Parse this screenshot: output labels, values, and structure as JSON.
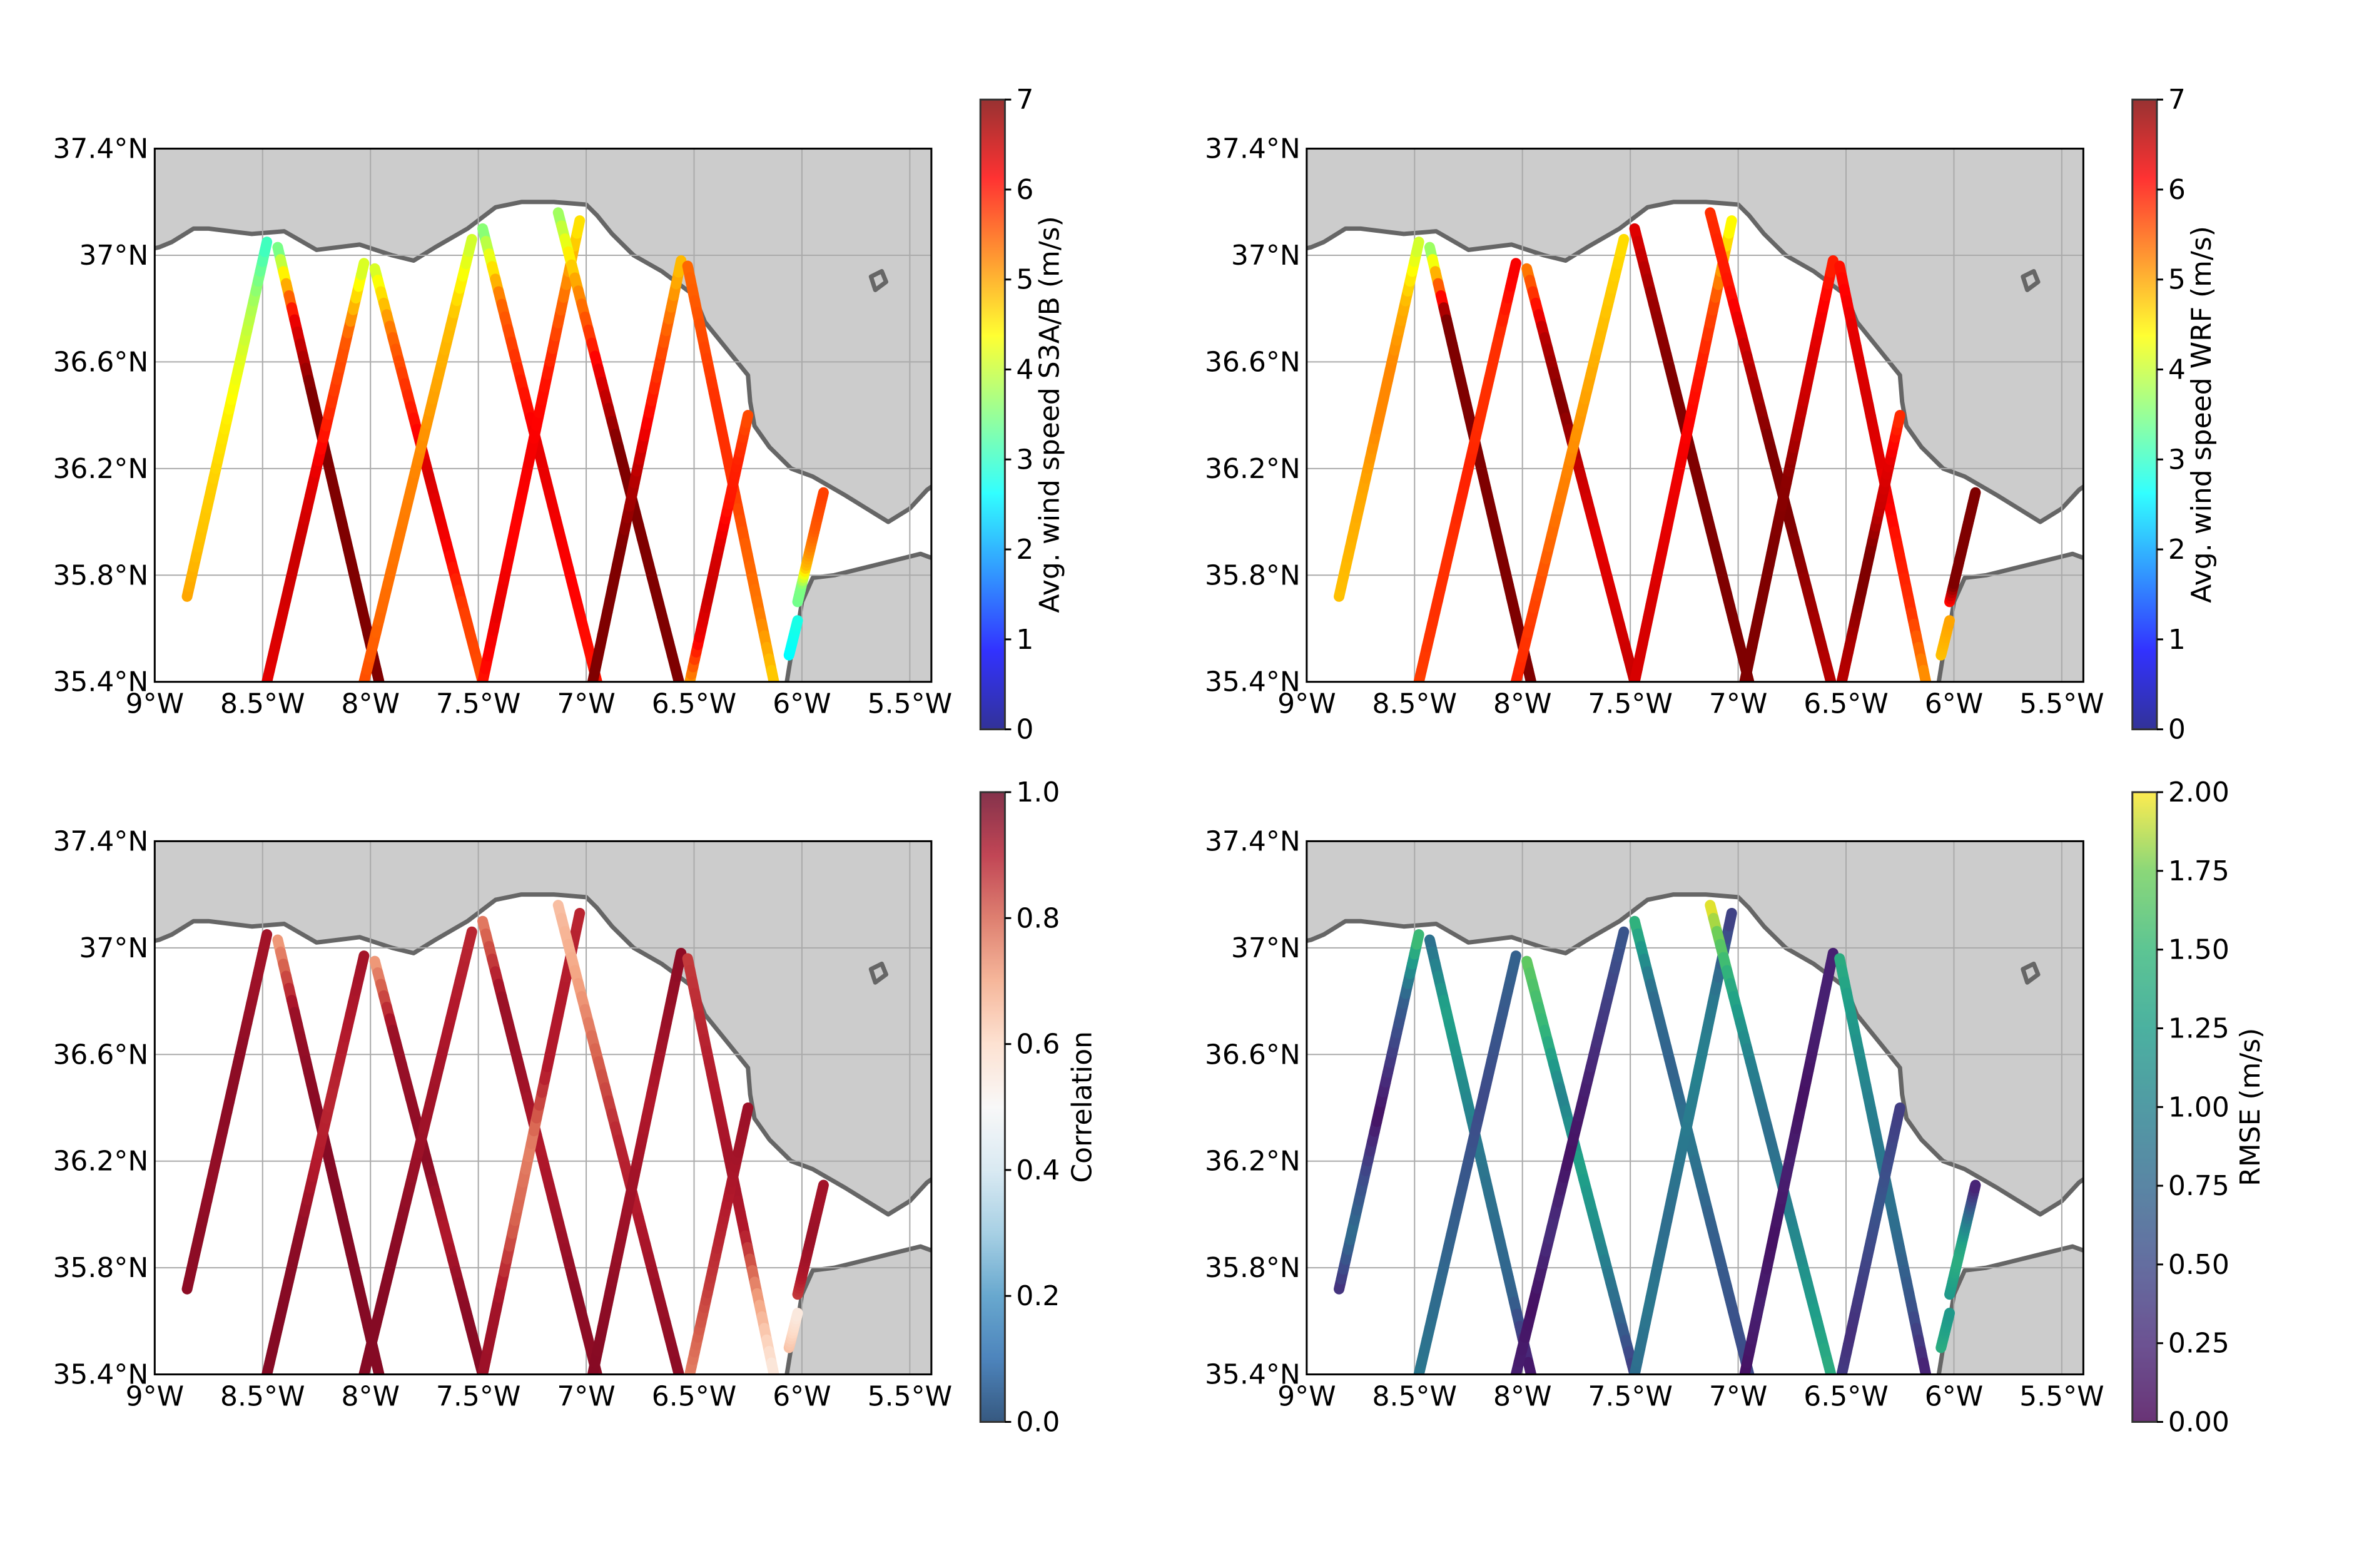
{
  "figure": {
    "panels": [
      {
        "id": "s3ab",
        "colorbar_label": "Avg. wind speed S3A/B (m/s)",
        "colormap": "jet",
        "vmin": 0,
        "vmax": 7,
        "colorbar_ticks": [
          "0",
          "1",
          "2",
          "3",
          "4",
          "5",
          "6",
          "7"
        ]
      },
      {
        "id": "wrf",
        "colorbar_label": "Avg. wind speed WRF (m/s)",
        "colormap": "jet",
        "vmin": 0,
        "vmax": 7,
        "colorbar_ticks": [
          "0",
          "1",
          "2",
          "3",
          "4",
          "5",
          "6",
          "7"
        ]
      },
      {
        "id": "correlation",
        "colorbar_label": "Correlation",
        "colormap": "RdBu_r",
        "vmin": 0,
        "vmax": 1,
        "colorbar_ticks": [
          "0.0",
          "0.2",
          "0.4",
          "0.6",
          "0.8",
          "1.0"
        ]
      },
      {
        "id": "rmse",
        "colorbar_label": "RMSE (m/s)",
        "colormap": "viridis",
        "vmin": 0,
        "vmax": 2,
        "colorbar_ticks": [
          "0.00",
          "0.25",
          "0.50",
          "0.75",
          "1.00",
          "1.25",
          "1.50",
          "1.75",
          "2.00"
        ]
      }
    ],
    "x_ticks": [
      "9°W",
      "8.5°W",
      "8°W",
      "7.5°W",
      "7°W",
      "6.5°W",
      "6°W",
      "5.5°W"
    ],
    "y_ticks": [
      "35.4°N",
      "35.8°N",
      "36.2°N",
      "36.6°N",
      "37°N",
      "37.4°N"
    ],
    "colors": {
      "land": "#cccccc",
      "coast": "#666666",
      "grid": "#aaaaaa"
    }
  },
  "chart_data": [
    {
      "type": "map-tracks",
      "panel": "s3ab",
      "lon_range": [
        -9,
        -5.4
      ],
      "lat_range": [
        35.4,
        37.4
      ],
      "grid": true,
      "tracks": [
        {
          "start": [
            -8.85,
            35.72
          ],
          "end": [
            -8.48,
            37.05
          ],
          "values": [
            5.0,
            4.8,
            4.7,
            4.5,
            4.2,
            3.8,
            3.0
          ]
        },
        {
          "start": [
            -8.43,
            37.03
          ],
          "end": [
            -7.96,
            35.4
          ],
          "values": [
            3.2,
            6.2,
            7.0,
            7.0,
            7.0,
            7.0,
            7.0
          ]
        },
        {
          "start": [
            -8.48,
            35.4
          ],
          "end": [
            -8.03,
            36.97
          ],
          "values": [
            6.3,
            6.4,
            6.5,
            6.3,
            5.8,
            5.5,
            4.0
          ]
        },
        {
          "start": [
            -7.98,
            36.95
          ],
          "end": [
            -7.48,
            35.4
          ],
          "values": [
            4.0,
            5.4,
            5.9,
            6.4,
            6.2,
            5.7,
            5.6
          ]
        },
        {
          "start": [
            -8.03,
            35.4
          ],
          "end": [
            -7.53,
            37.06
          ],
          "values": [
            5.6,
            5.4,
            5.3,
            5.2,
            5.0,
            4.8,
            4.0
          ]
        },
        {
          "start": [
            -7.48,
            37.1
          ],
          "end": [
            -6.95,
            35.4
          ],
          "values": [
            3.4,
            5.4,
            5.9,
            6.3,
            6.2,
            6.1,
            6.0
          ]
        },
        {
          "start": [
            -7.48,
            35.4
          ],
          "end": [
            -7.03,
            37.13
          ],
          "values": [
            6.0,
            6.3,
            6.1,
            6.2,
            6.0,
            5.4,
            4.5
          ]
        },
        {
          "start": [
            -7.13,
            37.16
          ],
          "end": [
            -6.57,
            35.4
          ],
          "values": [
            3.6,
            5.1,
            6.2,
            7.0,
            7.0,
            7.0,
            7.0
          ]
        },
        {
          "start": [
            -6.97,
            35.4
          ],
          "end": [
            -6.56,
            36.98
          ],
          "values": [
            7.0,
            7.0,
            7.0,
            6.6,
            6.0,
            5.5,
            4.8
          ]
        },
        {
          "start": [
            -6.53,
            36.96
          ],
          "end": [
            -6.13,
            35.4
          ],
          "values": [
            5.4,
            5.6,
            5.8,
            5.8,
            5.5,
            5.3,
            4.7
          ]
        },
        {
          "start": [
            -6.52,
            35.4
          ],
          "end": [
            -6.25,
            36.4
          ],
          "values": [
            5.0,
            6.2,
            6.5,
            6.4,
            6.0,
            5.9,
            5.6
          ]
        },
        {
          "start": [
            -6.02,
            35.7
          ],
          "end": [
            -5.9,
            36.11
          ],
          "values": [
            3.4,
            3.5,
            4.8,
            5.2,
            5.5,
            5.6,
            5.7
          ]
        },
        {
          "start": [
            -6.06,
            35.5
          ],
          "end": [
            -6.02,
            35.63
          ],
          "values": [
            2.6,
            2.7,
            2.8
          ]
        }
      ]
    },
    {
      "type": "map-tracks",
      "panel": "wrf",
      "lon_range": [
        -9,
        -5.4
      ],
      "lat_range": [
        35.4,
        37.4
      ],
      "grid": true,
      "tracks": [
        {
          "start": [
            -8.85,
            35.72
          ],
          "end": [
            -8.48,
            37.05
          ],
          "values": [
            4.8,
            4.9,
            5.0,
            5.2,
            5.2,
            4.9,
            4.0
          ]
        },
        {
          "start": [
            -8.43,
            37.03
          ],
          "end": [
            -7.96,
            35.4
          ],
          "values": [
            3.4,
            7.0,
            7.0,
            7.0,
            7.0,
            7.0,
            7.0
          ]
        },
        {
          "start": [
            -8.48,
            35.4
          ],
          "end": [
            -8.03,
            36.97
          ],
          "values": [
            5.7,
            5.8,
            5.8,
            5.9,
            5.8,
            5.8,
            6.2
          ]
        },
        {
          "start": [
            -7.98,
            36.95
          ],
          "end": [
            -7.48,
            35.4
          ],
          "values": [
            5.2,
            6.6,
            7.0,
            6.5,
            6.3,
            6.4,
            6.5
          ]
        },
        {
          "start": [
            -8.03,
            35.4
          ],
          "end": [
            -7.53,
            37.06
          ],
          "values": [
            5.9,
            5.7,
            5.4,
            5.2,
            5.0,
            4.8,
            4.6
          ]
        },
        {
          "start": [
            -7.48,
            37.1
          ],
          "end": [
            -6.95,
            35.4
          ],
          "values": [
            6.3,
            6.8,
            7.0,
            7.0,
            7.0,
            7.0,
            7.0
          ]
        },
        {
          "start": [
            -7.48,
            35.4
          ],
          "end": [
            -7.03,
            37.13
          ],
          "values": [
            6.4,
            6.4,
            6.3,
            6.2,
            6.0,
            5.6,
            4.3
          ]
        },
        {
          "start": [
            -7.13,
            37.16
          ],
          "end": [
            -6.57,
            35.4
          ],
          "values": [
            5.8,
            6.0,
            6.6,
            7.0,
            7.0,
            6.8,
            6.6
          ]
        },
        {
          "start": [
            -6.97,
            35.4
          ],
          "end": [
            -6.56,
            36.98
          ],
          "values": [
            7.0,
            7.0,
            7.0,
            6.9,
            6.5,
            6.3,
            5.9
          ]
        },
        {
          "start": [
            -6.53,
            36.96
          ],
          "end": [
            -6.13,
            35.4
          ],
          "values": [
            6.0,
            6.3,
            6.4,
            6.3,
            6.0,
            5.8,
            5.1
          ]
        },
        {
          "start": [
            -6.52,
            35.4
          ],
          "end": [
            -6.25,
            36.4
          ],
          "values": [
            6.6,
            6.7,
            7.0,
            7.0,
            6.5,
            6.3,
            5.8
          ]
        },
        {
          "start": [
            -6.02,
            35.7
          ],
          "end": [
            -5.9,
            36.11
          ],
          "values": [
            6.0,
            7.0,
            7.0,
            7.0,
            7.0,
            7.0,
            7.0
          ]
        },
        {
          "start": [
            -6.06,
            35.5
          ],
          "end": [
            -6.02,
            35.63
          ],
          "values": [
            4.8,
            4.9,
            5.0
          ]
        }
      ]
    },
    {
      "type": "map-tracks",
      "panel": "correlation",
      "lon_range": [
        -9,
        -5.4
      ],
      "lat_range": [
        35.4,
        37.4
      ],
      "grid": true,
      "tracks": [
        {
          "start": [
            -8.85,
            35.72
          ],
          "end": [
            -8.48,
            37.05
          ],
          "values": [
            0.95,
            0.95,
            0.94,
            0.95,
            0.95,
            0.93,
            0.92
          ]
        },
        {
          "start": [
            -8.43,
            37.03
          ],
          "end": [
            -7.96,
            35.4
          ],
          "values": [
            0.7,
            0.93,
            0.95,
            0.96,
            0.96,
            0.96,
            0.96
          ]
        },
        {
          "start": [
            -8.48,
            35.4
          ],
          "end": [
            -8.03,
            36.97
          ],
          "values": [
            0.96,
            0.96,
            0.95,
            0.9,
            0.88,
            0.9,
            0.92
          ]
        },
        {
          "start": [
            -7.98,
            36.95
          ],
          "end": [
            -7.48,
            35.4
          ],
          "values": [
            0.7,
            0.93,
            0.94,
            0.95,
            0.9,
            0.95,
            0.96
          ]
        },
        {
          "start": [
            -8.03,
            35.4
          ],
          "end": [
            -7.53,
            37.06
          ],
          "values": [
            0.96,
            0.96,
            0.95,
            0.93,
            0.92,
            0.9,
            0.88
          ]
        },
        {
          "start": [
            -7.48,
            37.1
          ],
          "end": [
            -6.95,
            35.4
          ],
          "values": [
            0.75,
            0.93,
            0.93,
            0.9,
            0.92,
            0.95,
            0.95
          ]
        },
        {
          "start": [
            -7.48,
            35.4
          ],
          "end": [
            -7.03,
            37.13
          ],
          "values": [
            0.93,
            0.92,
            0.8,
            0.75,
            0.9,
            0.9,
            0.88
          ]
        },
        {
          "start": [
            -7.13,
            37.16
          ],
          "end": [
            -6.57,
            35.4
          ],
          "values": [
            0.65,
            0.7,
            0.8,
            0.88,
            0.9,
            0.93,
            0.95
          ]
        },
        {
          "start": [
            -6.97,
            35.4
          ],
          "end": [
            -6.56,
            36.98
          ],
          "values": [
            0.96,
            0.95,
            0.93,
            0.92,
            0.9,
            0.93,
            0.95
          ]
        },
        {
          "start": [
            -6.53,
            36.96
          ],
          "end": [
            -6.13,
            35.4
          ],
          "values": [
            0.85,
            0.88,
            0.9,
            0.92,
            0.9,
            0.7,
            0.55
          ]
        },
        {
          "start": [
            -6.52,
            35.4
          ],
          "end": [
            -6.25,
            36.4
          ],
          "values": [
            0.75,
            0.8,
            0.85,
            0.88,
            0.9,
            0.92,
            0.93
          ]
        },
        {
          "start": [
            -6.02,
            35.7
          ],
          "end": [
            -5.9,
            36.11
          ],
          "values": [
            0.85,
            0.9,
            0.92,
            0.93,
            0.93,
            0.92,
            0.92
          ]
        },
        {
          "start": [
            -6.06,
            35.5
          ],
          "end": [
            -6.02,
            35.63
          ],
          "values": [
            0.65,
            0.6,
            0.55
          ]
        }
      ]
    },
    {
      "type": "map-tracks",
      "panel": "rmse",
      "lon_range": [
        -9,
        -5.4
      ],
      "lat_range": [
        35.4,
        37.4
      ],
      "grid": true,
      "tracks": [
        {
          "start": [
            -8.85,
            35.72
          ],
          "end": [
            -8.48,
            37.05
          ],
          "values": [
            0.3,
            0.8,
            0.5,
            0.1,
            0.4,
            0.7,
            1.6
          ]
        },
        {
          "start": [
            -8.43,
            37.03
          ],
          "end": [
            -7.96,
            35.4
          ],
          "values": [
            0.8,
            1.3,
            1.1,
            0.9,
            0.8,
            0.7,
            0.1
          ]
        },
        {
          "start": [
            -8.48,
            35.4
          ],
          "end": [
            -8.03,
            36.97
          ],
          "values": [
            0.9,
            0.8,
            0.7,
            0.6,
            0.5,
            0.6,
            0.7
          ]
        },
        {
          "start": [
            -7.98,
            36.95
          ],
          "end": [
            -7.48,
            35.4
          ],
          "values": [
            1.7,
            1.5,
            1.0,
            1.3,
            1.1,
            0.8,
            0.4
          ]
        },
        {
          "start": [
            -8.03,
            35.4
          ],
          "end": [
            -7.53,
            37.06
          ],
          "values": [
            0.2,
            0.1,
            0.3,
            0.1,
            0.2,
            0.4,
            0.6
          ]
        },
        {
          "start": [
            -7.48,
            37.1
          ],
          "end": [
            -6.95,
            35.4
          ],
          "values": [
            1.5,
            0.8,
            0.7,
            0.9,
            0.7,
            0.6,
            0.5
          ]
        },
        {
          "start": [
            -7.48,
            35.4
          ],
          "end": [
            -7.03,
            37.13
          ],
          "values": [
            0.8,
            0.9,
            0.8,
            0.9,
            1.0,
            0.9,
            0.4
          ]
        },
        {
          "start": [
            -7.13,
            37.16
          ],
          "end": [
            -6.57,
            35.4
          ],
          "values": [
            2.0,
            1.4,
            1.0,
            0.8,
            1.0,
            1.2,
            1.4
          ]
        },
        {
          "start": [
            -6.97,
            35.4
          ],
          "end": [
            -6.56,
            36.98
          ],
          "values": [
            0.1,
            0.2,
            0.1,
            0.2,
            0.1,
            0.2,
            0.2
          ]
        },
        {
          "start": [
            -6.53,
            36.96
          ],
          "end": [
            -6.13,
            35.4
          ],
          "values": [
            1.4,
            1.2,
            1.0,
            0.9,
            0.8,
            0.6,
            0.2
          ]
        },
        {
          "start": [
            -6.52,
            35.4
          ],
          "end": [
            -6.25,
            36.4
          ],
          "values": [
            0.4,
            0.3,
            0.4,
            0.5,
            0.6,
            0.5,
            0.4
          ]
        },
        {
          "start": [
            -6.02,
            35.7
          ],
          "end": [
            -5.9,
            36.11
          ],
          "values": [
            1.2,
            1.3,
            1.4,
            1.3,
            1.0,
            0.6,
            0.2
          ]
        },
        {
          "start": [
            -6.06,
            35.5
          ],
          "end": [
            -6.02,
            35.63
          ],
          "values": [
            1.4,
            1.3,
            1.2
          ]
        }
      ]
    }
  ]
}
